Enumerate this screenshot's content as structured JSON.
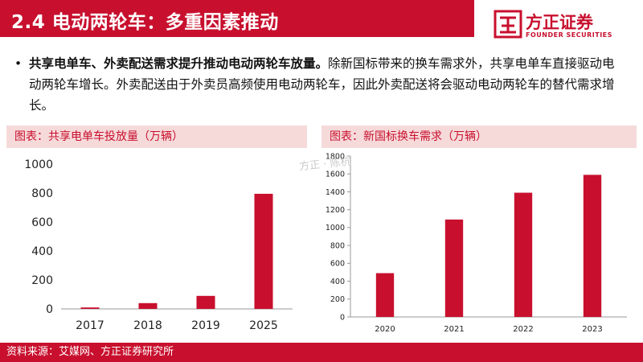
{
  "header": {
    "title": "2.4 电动两轮车：多重因素推动",
    "logo_cn": "方正证券",
    "logo_en": "FOUNDER SECURITIES"
  },
  "bullet": {
    "marker": "•",
    "bold_text": "共享电单车、外卖配送需求提升推动电动两轮车放量。",
    "text": "除新国标带来的换车需求外，共享电单车直接驱动电动两轮车增长。外卖配送由于外卖员高频使用电动两轮车，因此外卖配送将会驱动电动两轮车的替代需求增长。"
  },
  "watermark": "方正 · 陈杭",
  "footer": {
    "source": "资料来源：艾媒网、方正证券研究所"
  },
  "colors": {
    "brand_red": "#c8102e",
    "header_bg": "#f6dada"
  },
  "chart_data": [
    {
      "type": "bar",
      "title": "图表：共享电单车投放量（万辆）",
      "categories": [
        "2017",
        "2018",
        "2019",
        "2025"
      ],
      "values": [
        10,
        40,
        90,
        795
      ],
      "ylim": [
        0,
        1000
      ],
      "yticks": [
        0,
        200,
        400,
        600,
        800,
        1000
      ],
      "grid": false,
      "color": "#c8102e"
    },
    {
      "type": "bar",
      "title": "图表：新国标换车需求（万辆）",
      "categories": [
        "2020",
        "2021",
        "2022",
        "2023"
      ],
      "values": [
        490,
        1090,
        1390,
        1590
      ],
      "ylim": [
        0,
        1800
      ],
      "yticks": [
        0,
        200,
        400,
        600,
        800,
        1000,
        1200,
        1400,
        1600,
        1800
      ],
      "grid": false,
      "color": "#c8102e"
    }
  ]
}
